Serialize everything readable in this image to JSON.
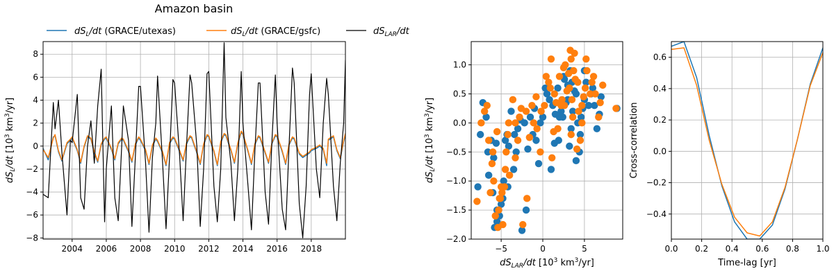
{
  "figure_title": "Amazon basin",
  "legend": {
    "entries": [
      {
        "label": "dS_L/dt (GRACE/utexas)",
        "color": "#1f77b4"
      },
      {
        "label": "dS_L/dt (GRACE/gsfc)",
        "color": "#ff7f0e"
      },
      {
        "label": "dS_LAR/dt",
        "color": "#000000"
      }
    ]
  },
  "chart_data": [
    {
      "type": "line",
      "title": "Amazon basin",
      "xlabel": "",
      "ylabel": "dS_L/dt [10^3 km^3/yr]",
      "xlim": [
        2002.3,
        2020.0
      ],
      "ylim": [
        -8.1,
        9.1
      ],
      "xticks": [
        2004,
        2006,
        2008,
        2010,
        2012,
        2014,
        2016,
        2018
      ],
      "yticks": [
        -8,
        -6,
        -4,
        -2,
        0,
        2,
        4,
        6,
        8
      ],
      "grid": true,
      "x": [
        2002.3,
        2002.6,
        2002.9,
        2003.0,
        2003.2,
        2003.4,
        2003.7,
        2003.9,
        2004.0,
        2004.3,
        2004.5,
        2004.7,
        2004.9,
        2005.1,
        2005.3,
        2005.5,
        2005.7,
        2005.9,
        2006.0,
        2006.3,
        2006.5,
        2006.7,
        2006.9,
        2007.0,
        2007.3,
        2007.5,
        2007.7,
        2007.9,
        2008.0,
        2008.3,
        2008.5,
        2008.7,
        2008.9,
        2009.0,
        2009.3,
        2009.5,
        2009.7,
        2009.9,
        2010.0,
        2010.3,
        2010.5,
        2010.7,
        2010.9,
        2011.0,
        2011.3,
        2011.5,
        2011.7,
        2011.9,
        2012.0,
        2012.3,
        2012.5,
        2012.7,
        2012.9,
        2013.0,
        2013.3,
        2013.5,
        2013.7,
        2013.9,
        2014.0,
        2014.3,
        2014.5,
        2014.7,
        2014.9,
        2015.0,
        2015.3,
        2015.5,
        2015.7,
        2015.9,
        2016.0,
        2016.3,
        2016.5,
        2016.7,
        2016.9,
        2017.0,
        2017.3,
        2017.5,
        2017.7,
        2017.9,
        2018.0,
        2018.3,
        2018.5,
        2018.7,
        2018.9,
        2019.0,
        2019.3,
        2019.5,
        2019.7,
        2019.9,
        2020.0
      ],
      "series": [
        {
          "name": "dS_L/dt (GRACE/utexas)",
          "color": "#1f77b4",
          "values": [
            -0.2,
            -1.2,
            0.8,
            0.9,
            -0.5,
            -1.3,
            0.2,
            0.5,
            0.7,
            -0.4,
            -1.5,
            -0.1,
            0.8,
            0.6,
            -0.6,
            -1.4,
            0.1,
            0.6,
            0.7,
            -0.3,
            -1.2,
            0.2,
            0.6,
            0.5,
            -0.5,
            -1.4,
            0.1,
            0.7,
            0.5,
            -0.4,
            -1.6,
            0.0,
            0.6,
            0.4,
            -0.6,
            -1.7,
            0.2,
            0.7,
            0.6,
            -0.5,
            -1.3,
            0.2,
            0.8,
            0.7,
            -0.6,
            -1.6,
            0.1,
            0.9,
            0.8,
            -0.5,
            -1.7,
            0.3,
            1.0,
            0.9,
            -0.4,
            -1.5,
            0.2,
            1.2,
            1.0,
            -0.5,
            -1.6,
            0.1,
            0.8,
            0.7,
            -0.6,
            -1.5,
            0.2,
            0.9,
            0.8,
            -0.5,
            -1.6,
            0.1,
            0.7,
            0.6,
            -0.7,
            -1.0,
            -0.8,
            -0.6,
            -0.4,
            -0.2,
            0.0,
            -0.3,
            -1.7,
            0.5,
            0.8,
            -0.4,
            -1.1,
            0.4,
            1.0
          ]
        },
        {
          "name": "dS_L/dt (GRACE/gsfc)",
          "color": "#ff7f0e",
          "values": [
            -0.3,
            -1.0,
            0.7,
            1.0,
            -0.4,
            -1.2,
            0.3,
            0.6,
            0.8,
            -0.3,
            -1.4,
            0.0,
            0.9,
            0.7,
            -0.5,
            -1.3,
            0.2,
            0.7,
            0.8,
            -0.2,
            -1.1,
            0.3,
            0.7,
            0.6,
            -0.4,
            -1.3,
            0.2,
            0.8,
            0.6,
            -0.3,
            -1.5,
            0.1,
            0.7,
            0.5,
            -0.5,
            -1.6,
            0.3,
            0.8,
            0.7,
            -0.4,
            -1.2,
            0.3,
            0.9,
            0.8,
            -0.5,
            -1.5,
            0.2,
            1.0,
            0.9,
            -0.4,
            -1.6,
            0.4,
            1.1,
            1.0,
            -0.3,
            -1.4,
            0.3,
            1.3,
            1.1,
            -0.4,
            -1.5,
            0.2,
            0.9,
            0.8,
            -0.5,
            -1.4,
            0.3,
            1.0,
            0.9,
            -0.4,
            -1.5,
            0.2,
            0.8,
            0.7,
            -0.6,
            -0.9,
            -0.7,
            -0.5,
            -0.3,
            -0.1,
            0.1,
            -0.2,
            -1.5,
            0.6,
            0.9,
            -0.3,
            -1.0,
            0.5,
            1.1
          ]
        },
        {
          "name": "dS_LAR/dt",
          "color": "#000000",
          "values": [
            -4.2,
            -4.5,
            3.8,
            1.5,
            4.0,
            -0.5,
            -6.0,
            0.5,
            0.3,
            4.5,
            -4.5,
            -5.5,
            0.0,
            2.2,
            -1.5,
            3.5,
            6.7,
            -6.6,
            -2.0,
            3.5,
            -4.5,
            -6.5,
            0.0,
            3.5,
            0.5,
            -7.0,
            -1.0,
            5.2,
            5.2,
            -1.5,
            -7.5,
            -1.0,
            2.0,
            6.1,
            -1.5,
            -7.2,
            -1.0,
            5.8,
            5.5,
            -1.0,
            -6.5,
            0.0,
            6.2,
            5.5,
            0.0,
            -7.0,
            -2.0,
            6.3,
            6.5,
            -3.5,
            -6.6,
            -2.0,
            9.0,
            2.5,
            -1.5,
            -6.5,
            -2.0,
            6.5,
            2.0,
            -3.5,
            -7.3,
            -0.5,
            5.5,
            5.5,
            -4.0,
            -6.8,
            0.5,
            6.2,
            2.0,
            -5.5,
            -7.3,
            0.0,
            6.8,
            5.5,
            -5.0,
            -8.0,
            -3.5,
            4.5,
            6.3,
            -2.0,
            -4.5,
            2.0,
            5.9,
            4.5,
            -3.5,
            -6.5,
            -1.5,
            2.0,
            7.5
          ]
        }
      ]
    },
    {
      "type": "scatter",
      "xlabel": "dS_LAR/dt [10^3 km^3/yr]",
      "ylabel": "dS_L/dt [10^3 km^3/yr]",
      "xlim": [
        -8.6,
        9.6
      ],
      "ylim": [
        -2.0,
        1.4
      ],
      "xticks": [
        -5,
        0,
        5
      ],
      "yticks": [
        -2.0,
        -1.5,
        -1.0,
        -0.5,
        0.0,
        0.5,
        1.0
      ],
      "grid": true,
      "series": [
        {
          "name": "dS_L/dt (GRACE/utexas)",
          "color": "#1f77b4",
          "x": [
            -7.8,
            -7.5,
            -7.2,
            -6.8,
            -6.5,
            -6.0,
            -5.5,
            -5.8,
            -5.2,
            -4.8,
            -4.5,
            -4.2,
            -3.5,
            -3.2,
            -2.5,
            -2.0,
            -1.5,
            -5.9,
            -6.2,
            -5.5,
            -5.0,
            -4.7,
            -4.3,
            -3.8,
            -3.0,
            -2.2,
            -1.0,
            -0.5,
            0.0,
            0.5,
            1.0,
            1.2,
            1.8,
            2.0,
            2.5,
            3.0,
            3.2,
            3.5,
            4.0,
            4.5,
            5.0,
            5.5,
            6.0,
            6.5,
            7.0,
            2.2,
            2.8,
            3.8,
            4.2,
            4.8,
            5.2,
            1.5,
            0.8,
            -0.3,
            -1.2,
            -1.8,
            3.3,
            4.6,
            5.8,
            6.2,
            1.9,
            2.6,
            3.6,
            4.4,
            -0.8,
            0.3,
            -2.7,
            -3.4,
            -4.1,
            -5.3,
            3.0,
            4.0,
            5.0,
            6.8,
            8.9,
            1.4,
            2.4,
            3.4,
            -6.6,
            -5.6
          ],
          "y": [
            -1.1,
            -0.2,
            0.35,
            0.1,
            -0.9,
            -1.2,
            -1.5,
            -1.8,
            -1.6,
            -1.3,
            -0.3,
            -1.1,
            -0.8,
            -0.5,
            -1.85,
            -1.5,
            0.1,
            -0.6,
            -0.3,
            -1.7,
            -1.4,
            -1.0,
            -0.2,
            0.2,
            -0.1,
            0.0,
            0.25,
            -0.7,
            0.1,
            0.5,
            -0.8,
            0.3,
            0.6,
            0.1,
            0.8,
            0.4,
            -0.4,
            0.7,
            0.5,
            -0.2,
            0.9,
            0.3,
            0.6,
            -0.1,
            0.45,
            0.2,
            0.35,
            0.55,
            0.0,
            0.25,
            0.7,
            0.15,
            0.4,
            0.0,
            -0.2,
            -0.45,
            0.9,
            0.1,
            0.5,
            0.3,
            -0.3,
            0.75,
            0.2,
            -0.5,
            -0.3,
            0.6,
            0.05,
            -0.2,
            -0.4,
            -1.5,
            0.65,
            -0.65,
            0.4,
            0.15,
            0.25,
            -0.35,
            0.1,
            -0.1,
            -0.5,
            -0.35
          ]
        },
        {
          "name": "dS_L/dt (GRACE/gsfc)",
          "color": "#ff7f0e",
          "x": [
            -7.9,
            -7.4,
            -7.0,
            -6.7,
            -6.3,
            -5.9,
            -5.4,
            -5.7,
            -5.1,
            -4.6,
            -4.4,
            -4.0,
            -3.3,
            -3.0,
            -2.4,
            -1.9,
            -1.3,
            -6.0,
            -6.1,
            -5.3,
            -4.9,
            -4.5,
            -4.1,
            -3.6,
            -2.8,
            -2.0,
            -0.8,
            -0.3,
            0.2,
            0.7,
            1.1,
            1.4,
            2.0,
            2.2,
            2.7,
            3.2,
            3.4,
            3.7,
            4.2,
            4.7,
            5.2,
            5.7,
            6.1,
            6.7,
            7.2,
            2.3,
            2.9,
            3.9,
            4.3,
            4.9,
            5.3,
            1.6,
            0.9,
            -0.2,
            -1.1,
            -1.6,
            3.4,
            4.7,
            5.9,
            6.3,
            1.8,
            2.5,
            3.5,
            4.5,
            -0.7,
            0.4,
            -2.6,
            -3.3,
            -4.2,
            -5.2,
            3.1,
            4.1,
            5.1,
            6.9,
            8.8,
            1.3,
            2.6,
            3.6,
            -6.5,
            -5.5,
            1.0,
            3.3,
            3.8,
            -4.8,
            -5.0
          ],
          "y": [
            -1.35,
            0.0,
            0.2,
            0.3,
            -1.2,
            -1.0,
            -1.8,
            -1.6,
            -1.3,
            -1.1,
            -0.5,
            -0.9,
            -0.6,
            -0.3,
            -1.75,
            -1.3,
            0.3,
            -0.5,
            -0.7,
            -1.5,
            -1.2,
            -0.8,
            0.0,
            0.4,
            0.1,
            0.2,
            0.45,
            -0.5,
            0.3,
            0.7,
            -0.6,
            0.5,
            0.8,
            0.3,
            1.0,
            0.6,
            -0.2,
            0.9,
            0.7,
            0.0,
            1.1,
            0.5,
            0.8,
            0.1,
            0.65,
            0.4,
            0.55,
            0.75,
            0.2,
            0.45,
            0.9,
            0.35,
            0.6,
            0.2,
            0.0,
            -0.25,
            1.1,
            0.3,
            0.7,
            0.5,
            -0.1,
            0.95,
            0.4,
            -0.3,
            -0.1,
            0.8,
            0.25,
            0.0,
            -0.2,
            -1.3,
            0.85,
            -0.45,
            0.6,
            0.35,
            0.25,
            -0.15,
            0.3,
            0.1,
            -0.3,
            -0.15,
            1.1,
            1.25,
            1.2,
            -1.75,
            -1.1
          ]
        }
      ]
    },
    {
      "type": "line",
      "xlabel": "Time-lag [yr]",
      "ylabel": "Cross-correlation",
      "xlim": [
        0.0,
        1.0
      ],
      "ylim": [
        -0.56,
        0.7
      ],
      "xticks": [
        0.0,
        0.2,
        0.4,
        0.6,
        0.8,
        1.0
      ],
      "yticks": [
        -0.4,
        -0.2,
        0.0,
        0.2,
        0.4,
        0.6
      ],
      "grid": true,
      "x": [
        0.0,
        0.083,
        0.167,
        0.25,
        0.333,
        0.417,
        0.5,
        0.583,
        0.667,
        0.75,
        0.833,
        0.917,
        1.0
      ],
      "series": [
        {
          "name": "dS_L/dt (GRACE/utexas)",
          "color": "#1f77b4",
          "values": [
            0.67,
            0.7,
            0.47,
            0.1,
            -0.22,
            -0.45,
            -0.56,
            -0.56,
            -0.47,
            -0.24,
            0.08,
            0.43,
            0.66
          ]
        },
        {
          "name": "dS_L/dt (GRACE/gsfc)",
          "color": "#ff7f0e",
          "values": [
            0.65,
            0.66,
            0.42,
            0.07,
            -0.21,
            -0.42,
            -0.52,
            -0.54,
            -0.45,
            -0.23,
            0.08,
            0.42,
            0.63
          ]
        }
      ]
    }
  ]
}
